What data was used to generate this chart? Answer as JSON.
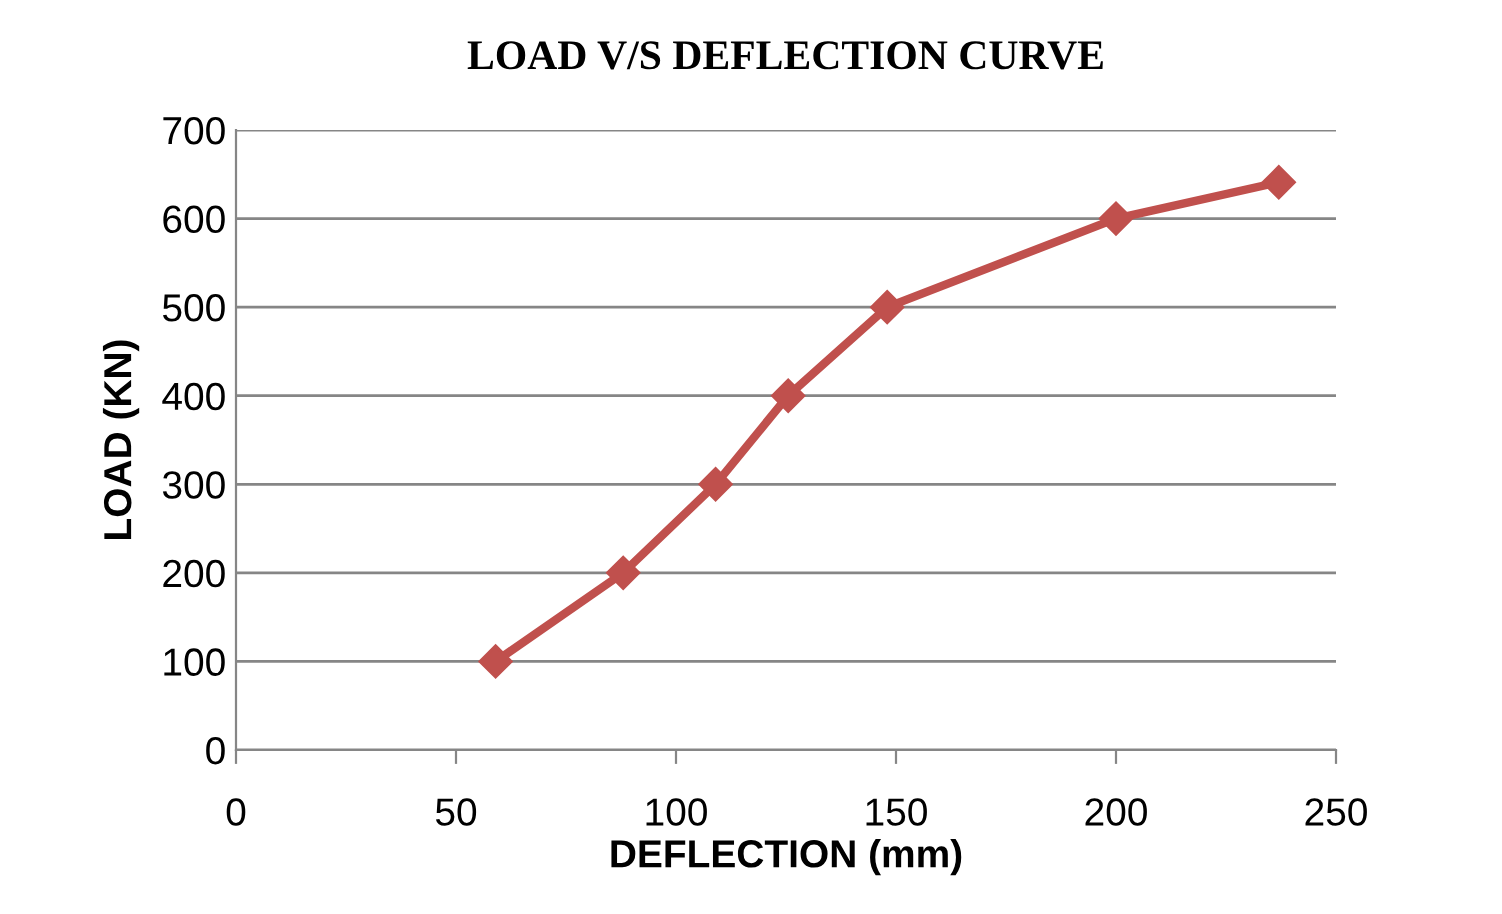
{
  "chart_data": {
    "type": "line",
    "title": "LOAD V/S DEFLECTION CURVE",
    "xlabel": "DEFLECTION (mm)",
    "ylabel": "LOAD (KN)",
    "series": [
      {
        "color": "#c0504d",
        "x": [
          59,
          88,
          109,
          125.5,
          148,
          200,
          237
        ],
        "values": [
          100,
          200,
          300,
          400,
          500,
          600,
          641
        ]
      }
    ],
    "xlim": [
      0,
      250
    ],
    "xticks": [
      0,
      50,
      100,
      150,
      200,
      250
    ],
    "ylim": [
      0,
      700
    ],
    "yticks": [
      0,
      100,
      200,
      300,
      400,
      500,
      600,
      700
    ],
    "grid": "y",
    "legend": false,
    "marker": "diamond",
    "line_style": "solid"
  }
}
